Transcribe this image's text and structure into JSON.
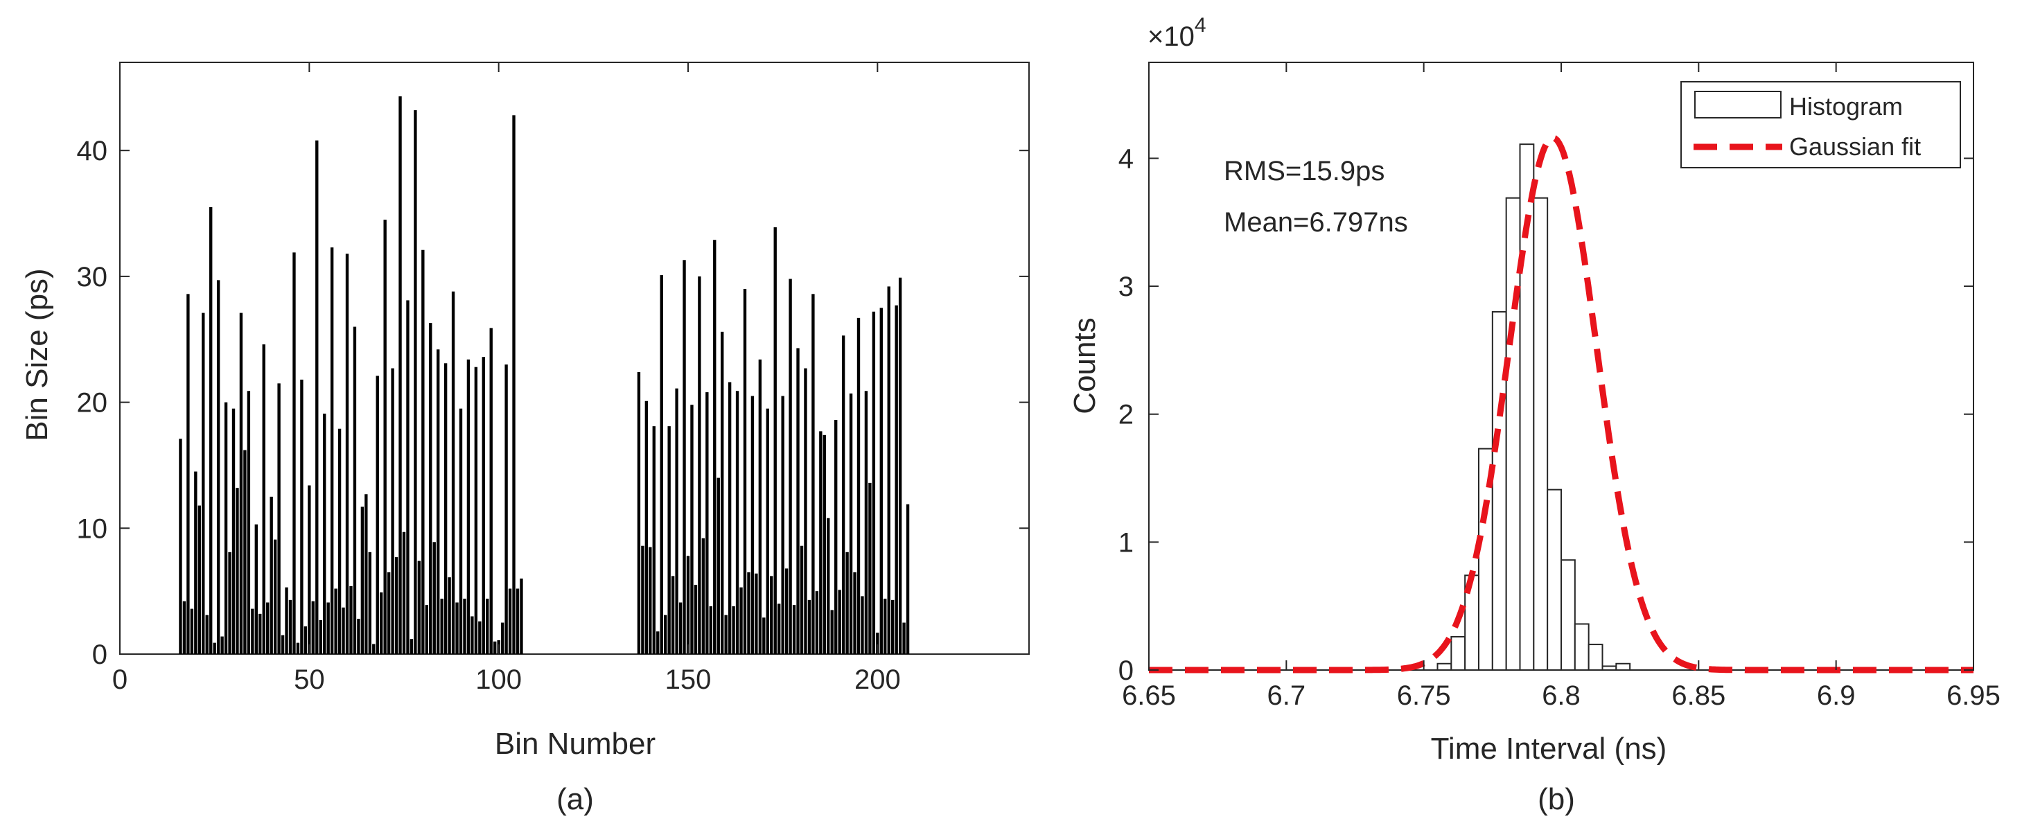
{
  "chart_data": [
    {
      "type": "bar",
      "caption": "(a)",
      "xlabel": "Bin Number",
      "ylabel": "Bin Size (ps)",
      "xlim": [
        0,
        240
      ],
      "ylim": [
        0,
        47
      ],
      "xticks": [
        0,
        50,
        100,
        150,
        200
      ],
      "yticks": [
        0,
        10,
        20,
        30,
        40
      ],
      "grid": false,
      "segments": [
        {
          "x_start": 16,
          "values": [
            17.1,
            4.2,
            28.6,
            3.6,
            14.5,
            11.8,
            27.1,
            3.1,
            35.5,
            0.9,
            29.7,
            1.4,
            20.0,
            8.1,
            19.5,
            13.2,
            27.1,
            16.2,
            20.9,
            3.6,
            10.3,
            3.2,
            24.6,
            4.1,
            12.5,
            9.1,
            21.5,
            1.5,
            5.3,
            4.3,
            31.9,
            0.9,
            21.8,
            2.2,
            13.4,
            4.2,
            40.8,
            2.7,
            19.1,
            4.1,
            32.3,
            5.2,
            17.9,
            3.7,
            31.8,
            5.4,
            26.0,
            2.8,
            11.7,
            12.7,
            8.1,
            0.8,
            22.1,
            4.9,
            34.5,
            6.5,
            22.7,
            7.7,
            44.3,
            9.7,
            28.1,
            1.2,
            43.2,
            7.4,
            32.1,
            3.9,
            26.3,
            8.9,
            24.2,
            4.4,
            23.1,
            6.1,
            28.8,
            4.1,
            19.5,
            4.4,
            23.4,
            3.0,
            22.8,
            2.6,
            23.6,
            4.4,
            25.9,
            1.0,
            1.1,
            2.5,
            23.0,
            5.2,
            42.8,
            5.2,
            6.0
          ]
        },
        {
          "x_start": 137,
          "values": [
            22.4,
            8.6,
            20.1,
            8.5,
            18.1,
            1.8,
            30.1,
            3.1,
            18.1,
            6.2,
            21.1,
            4.1,
            31.3,
            7.8,
            19.8,
            5.5,
            30.0,
            9.2,
            20.8,
            3.8,
            32.9,
            14.0,
            25.6,
            3.1,
            21.6,
            3.8,
            20.9,
            5.3,
            29.0,
            6.5,
            20.5,
            6.4,
            23.4,
            2.9,
            19.5,
            6.2,
            33.9,
            4.0,
            20.5,
            6.8,
            29.8,
            3.9,
            24.3,
            8.6,
            22.7,
            4.3,
            28.6,
            5.0,
            17.7,
            17.4,
            10.8,
            3.5,
            18.6,
            5.1,
            25.3,
            8.1,
            20.7,
            6.5,
            26.7,
            4.6,
            20.9,
            13.6,
            27.2,
            1.7,
            27.5,
            4.4,
            29.2,
            4.3,
            27.7,
            29.9,
            2.5,
            11.9
          ]
        }
      ]
    },
    {
      "type": "histogram",
      "caption": "(b)",
      "xlabel": "Time Interval (ns)",
      "ylabel": "Counts",
      "y_exponent_label": "×10",
      "y_exponent": "4",
      "xlim": [
        6.65,
        6.95
      ],
      "ylim": [
        0,
        4.75
      ],
      "xticks": [
        "6.65",
        "6.7",
        "6.75",
        "6.8",
        "6.85",
        "6.9",
        "6.95"
      ],
      "yticks": [
        "0",
        "1",
        "2",
        "3",
        "4"
      ],
      "grid": false,
      "legend_position": "top-right",
      "histogram": {
        "name": "Histogram",
        "bin_width": 0.005,
        "bin_edges_start": 6.755,
        "counts_x1e4": [
          0.05,
          0.26,
          0.74,
          1.73,
          2.8,
          3.69,
          4.11,
          3.69,
          1.41,
          0.86,
          0.36,
          0.2,
          0.03,
          0.05
        ]
      },
      "fit": {
        "name": "Gaussian fit",
        "mean": 6.797,
        "sigma": 0.0159,
        "peak_x1e4": 4.16,
        "color": "#e8141c"
      },
      "annotations": [
        "RMS=15.9ps",
        "Mean=6.797ns"
      ]
    }
  ]
}
